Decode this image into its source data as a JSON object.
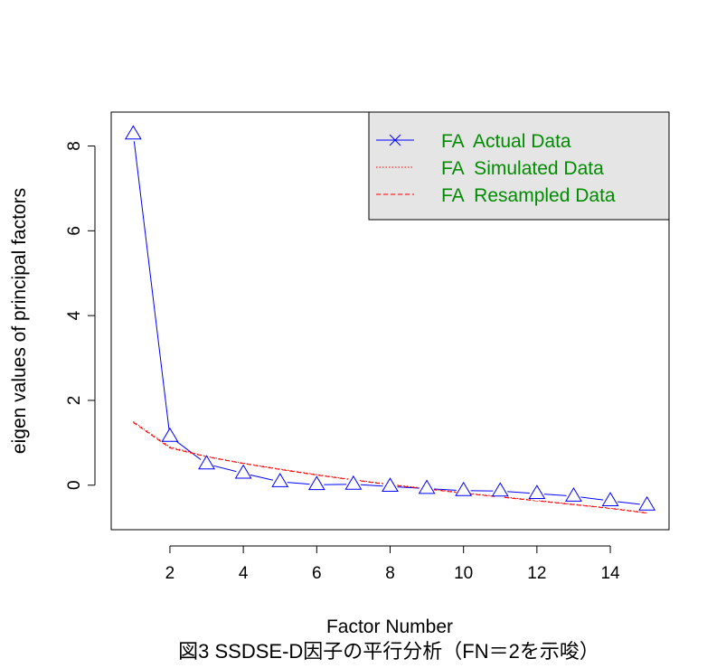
{
  "chart_data": {
    "type": "line",
    "title": "",
    "xlabel": "Factor Number",
    "ylabel": "eigen values of principal factors",
    "caption": "図3 SSDSE-D因子の平行分析（FN＝2を示唆）",
    "xlim": [
      0.4,
      15.6
    ],
    "ylim": [
      -1.05,
      8.8
    ],
    "x_ticks": [
      2,
      4,
      6,
      8,
      10,
      12,
      14
    ],
    "y_ticks": [
      0,
      2,
      4,
      6,
      8
    ],
    "grid": false,
    "legend_position": "top-right",
    "legend": [
      {
        "label": "FA  Actual Data",
        "color": "#0000ff",
        "style": "solid",
        "marker": "x"
      },
      {
        "label": "FA  Simulated Data",
        "color": "#ff0000",
        "style": "dotted"
      },
      {
        "label": "FA  Resampled Data",
        "color": "#ff0000",
        "style": "dashed"
      }
    ],
    "series": [
      {
        "name": "FA  Actual Data",
        "color": "#0000ff",
        "marker": "triangle",
        "x": [
          1,
          2,
          3,
          4,
          5,
          6,
          7,
          8,
          9,
          10,
          11,
          12,
          13,
          14,
          15
        ],
        "values": [
          8.28,
          1.15,
          0.5,
          0.28,
          0.08,
          0.01,
          0.02,
          -0.03,
          -0.08,
          -0.13,
          -0.14,
          -0.2,
          -0.26,
          -0.37,
          -0.47
        ]
      },
      {
        "name": "FA  Simulated Data",
        "color": "#ff0000",
        "x": [
          1,
          2,
          3,
          4,
          5,
          6,
          7,
          8,
          9,
          10,
          11,
          12,
          13,
          14,
          15
        ],
        "values": [
          1.5,
          0.9,
          0.68,
          0.52,
          0.38,
          0.25,
          0.13,
          0.02,
          -0.08,
          -0.18,
          -0.27,
          -0.36,
          -0.45,
          -0.54,
          -0.65
        ]
      },
      {
        "name": "FA  Resampled Data",
        "color": "#ff0000",
        "x": [
          1,
          2,
          3,
          4,
          5,
          6,
          7,
          8,
          9,
          10,
          11,
          12,
          13,
          14,
          15
        ],
        "values": [
          1.48,
          0.88,
          0.67,
          0.51,
          0.37,
          0.24,
          0.12,
          0.01,
          -0.09,
          -0.19,
          -0.28,
          -0.37,
          -0.46,
          -0.55,
          -0.66
        ]
      }
    ]
  }
}
